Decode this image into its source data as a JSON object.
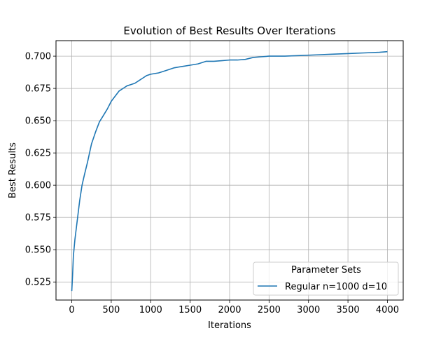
{
  "chart_data": {
    "type": "line",
    "title": "Evolution of Best Results Over Iterations",
    "xlabel": "Iterations",
    "ylabel": "Best Results",
    "xlim": [
      -200,
      4200
    ],
    "ylim": [
      0.511,
      0.712
    ],
    "xticks": [
      0,
      500,
      1000,
      1500,
      2000,
      2500,
      3000,
      3500,
      4000
    ],
    "xtick_labels": [
      "0",
      "500",
      "1000",
      "1500",
      "2000",
      "2500",
      "3000",
      "3500",
      "4000"
    ],
    "yticks": [
      0.525,
      0.55,
      0.575,
      0.6,
      0.625,
      0.65,
      0.675,
      0.7
    ],
    "ytick_labels": [
      "0.525",
      "0.550",
      "0.575",
      "0.600",
      "0.625",
      "0.650",
      "0.675",
      "0.700"
    ],
    "grid": true,
    "legend": {
      "title": "Parameter Sets",
      "placement": "lower-right"
    },
    "series": [
      {
        "name": "Regular n=1000 d=10",
        "color": "#1f77b4",
        "x": [
          0,
          10,
          20,
          40,
          60,
          80,
          100,
          130,
          160,
          200,
          250,
          300,
          350,
          400,
          450,
          500,
          550,
          600,
          650,
          700,
          750,
          800,
          850,
          900,
          950,
          1000,
          1100,
          1200,
          1300,
          1400,
          1500,
          1600,
          1700,
          1800,
          1900,
          2000,
          2100,
          2200,
          2300,
          2400,
          2500,
          2700,
          2900,
          3100,
          3300,
          3500,
          3700,
          3900,
          4000
        ],
        "y": [
          0.518,
          0.53,
          0.545,
          0.558,
          0.568,
          0.578,
          0.588,
          0.6,
          0.608,
          0.618,
          0.632,
          0.641,
          0.649,
          0.654,
          0.659,
          0.665,
          0.669,
          0.673,
          0.675,
          0.677,
          0.678,
          0.679,
          0.681,
          0.683,
          0.685,
          0.686,
          0.687,
          0.689,
          0.691,
          0.692,
          0.693,
          0.694,
          0.696,
          0.696,
          0.6965,
          0.697,
          0.697,
          0.6975,
          0.699,
          0.6995,
          0.7,
          0.7,
          0.7005,
          0.701,
          0.7015,
          0.702,
          0.7025,
          0.703,
          0.7035
        ]
      }
    ]
  }
}
